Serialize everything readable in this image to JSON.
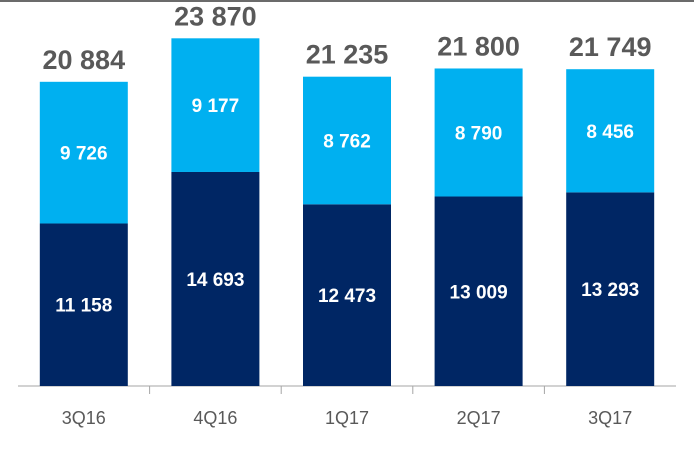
{
  "chart_data": {
    "type": "bar",
    "stacked": true,
    "categories": [
      "3Q16",
      "4Q16",
      "1Q17",
      "2Q17",
      "3Q17"
    ],
    "series": [
      {
        "values": [
          11158,
          14693,
          12473,
          13009,
          13293
        ],
        "labels": [
          "11 158",
          "14 693",
          "12 473",
          "13 009",
          "13 293"
        ],
        "color": "#002664"
      },
      {
        "values": [
          9726,
          9177,
          8762,
          8790,
          8456
        ],
        "labels": [
          "9 726",
          "9 177",
          "8 762",
          "8 790",
          "8 456"
        ],
        "color": "#00B0F0"
      }
    ],
    "totals": [
      20884,
      23870,
      21235,
      21800,
      21749
    ],
    "total_labels": [
      "20 884",
      "23 870",
      "21 235",
      "21 800",
      "21 749"
    ],
    "ylim": [
      0,
      26500
    ],
    "grid": false,
    "legend": "none",
    "title": "",
    "xlabel": "",
    "ylabel": ""
  }
}
